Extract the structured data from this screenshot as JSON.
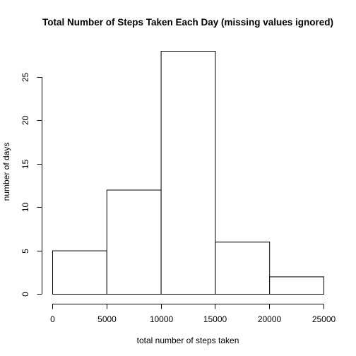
{
  "chart_data": {
    "type": "bar",
    "title": "Total Number of Steps Taken Each Day (missing values ignored)",
    "xlabel": "total number of steps taken",
    "ylabel": "number of days",
    "bins": [
      {
        "from": 0,
        "to": 5000,
        "count": 5
      },
      {
        "from": 5000,
        "to": 10000,
        "count": 12
      },
      {
        "from": 10000,
        "to": 15000,
        "count": 28
      },
      {
        "from": 15000,
        "to": 20000,
        "count": 6
      },
      {
        "from": 20000,
        "to": 25000,
        "count": 2
      }
    ],
    "x_ticks": [
      0,
      5000,
      10000,
      15000,
      20000,
      25000
    ],
    "y_ticks": [
      0,
      5,
      10,
      15,
      20,
      25
    ],
    "xlim": [
      0,
      25000
    ],
    "ylim": [
      0,
      28
    ],
    "grid": false,
    "legend": "none"
  }
}
